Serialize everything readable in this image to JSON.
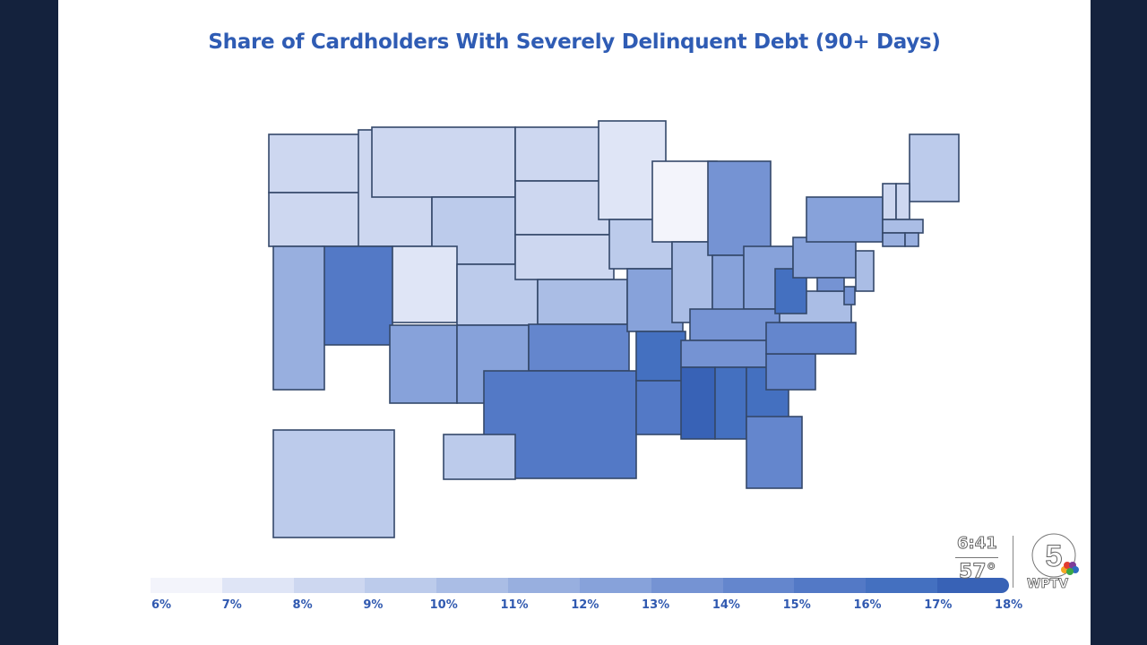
{
  "title": "Share of Cardholders With Severely Delinquent Debt (90+ Days)",
  "chart_data": {
    "type": "choropleth",
    "title": "Share of Cardholders With Severely Delinquent Debt (90+ Days)",
    "unit": "%",
    "legend": {
      "placement": "bottom",
      "ticks": [
        "6%",
        "7%",
        "8%",
        "9%",
        "10%",
        "11%",
        "12%",
        "13%",
        "14%",
        "15%",
        "16%",
        "17%",
        "18%"
      ],
      "colors": [
        "#f3f4fb",
        "#dfe5f6",
        "#cdd7f0",
        "#bccbeb",
        "#aabde5",
        "#98afdf",
        "#87a2da",
        "#7593d3",
        "#6486cd",
        "#5379c6",
        "#4470c0",
        "#3862b6"
      ]
    },
    "states": {
      "WA": 8,
      "OR": 8,
      "CA": 11,
      "NV": 15,
      "ID": 8,
      "MT": 8,
      "WY": 9,
      "UT": 7,
      "CO": 9,
      "AZ": 12,
      "NM": 12,
      "ND": 8,
      "SD": 8,
      "NE": 8,
      "KS": 10,
      "OK": 14,
      "TX": 15,
      "MN": 7,
      "IA": 9,
      "MO": 12,
      "AR": 16,
      "LA": 15,
      "WI": 6,
      "IL": 10,
      "MI": 13,
      "IN": 12,
      "OH": 12,
      "KY": 13,
      "TN": 13,
      "MS": 17,
      "AL": 16,
      "GA": 16,
      "FL": 14,
      "SC": 14,
      "NC": 14,
      "VA": 10,
      "WV": 16,
      "PA": 12,
      "NY": 12,
      "ME": 9,
      "VT": 8,
      "NH": 8,
      "MA": 10,
      "CT": 11,
      "RI": 11,
      "NJ": 10,
      "DE": 13,
      "MD": 13,
      "AK": 9,
      "HI": 9
    }
  },
  "overlay": {
    "time": "6:41",
    "temperature": "57°",
    "station": "WPTV",
    "channel": "5"
  }
}
